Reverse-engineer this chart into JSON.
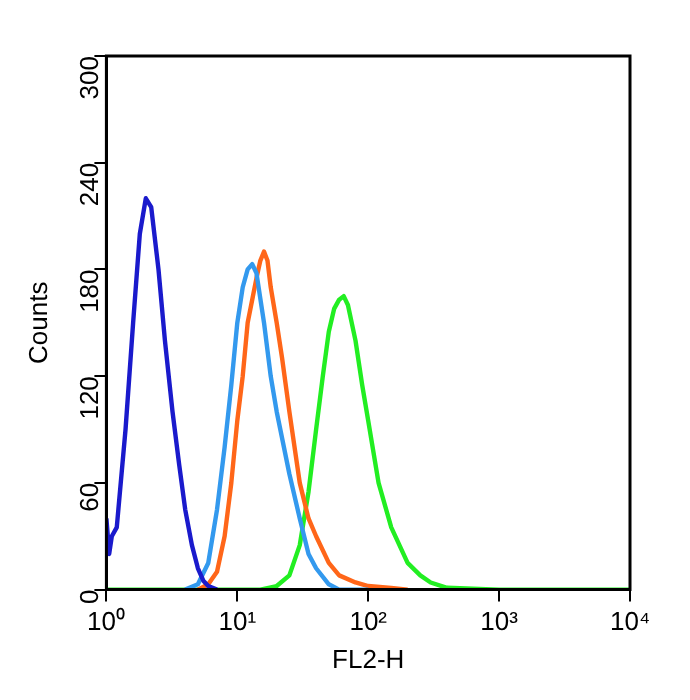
{
  "chart_data": {
    "type": "line",
    "xlabel": "FL2-H",
    "ylabel": "Counts",
    "log": "x",
    "xlim": [
      1,
      10000
    ],
    "ylim": [
      0,
      300
    ],
    "xticks": [
      {
        "value": 1,
        "label": "10⁰"
      },
      {
        "value": 10,
        "label": "10¹"
      },
      {
        "value": 100,
        "label": "10²"
      },
      {
        "value": 1000,
        "label": "10³"
      },
      {
        "value": 10000,
        "label": "10⁴"
      }
    ],
    "yticks": [
      0,
      60,
      120,
      180,
      240,
      300
    ],
    "grid": false,
    "legend": false,
    "marker": "none",
    "line_style": "solid",
    "series": [
      {
        "color": "#1a1acc",
        "x": [
          1,
          1.05,
          1.1,
          1.2,
          1.4,
          1.6,
          1.8,
          2.0,
          2.2,
          2.5,
          2.8,
          3.2,
          3.6,
          4.0,
          4.5,
          5,
          5.5,
          6,
          7
        ],
        "values": [
          40,
          20,
          30,
          35,
          90,
          150,
          200,
          220,
          215,
          180,
          140,
          100,
          70,
          45,
          25,
          12,
          5,
          2,
          0
        ]
      },
      {
        "color": "#3399ee",
        "x": [
          4,
          5,
          6,
          7,
          8,
          9,
          10,
          11,
          12,
          13,
          14,
          16,
          18,
          20,
          25,
          30,
          35,
          40,
          50,
          60,
          100
        ],
        "values": [
          0,
          3,
          15,
          45,
          80,
          115,
          150,
          170,
          180,
          183,
          178,
          150,
          120,
          100,
          65,
          40,
          20,
          12,
          3,
          0,
          0
        ]
      },
      {
        "color": "#ff6619",
        "x": [
          5,
          6,
          7,
          8,
          9,
          10,
          11,
          12,
          14,
          15,
          16,
          17,
          18,
          20,
          22,
          25,
          30,
          35,
          40,
          50,
          60,
          80,
          100,
          150,
          200
        ],
        "values": [
          0,
          3,
          10,
          30,
          60,
          95,
          120,
          150,
          175,
          185,
          190,
          185,
          170,
          150,
          130,
          100,
          60,
          40,
          30,
          15,
          8,
          4,
          2,
          1,
          0
        ]
      },
      {
        "color": "#22ee22",
        "x": [
          1,
          15,
          20,
          25,
          30,
          35,
          40,
          45,
          50,
          55,
          60,
          65,
          70,
          80,
          90,
          100,
          120,
          150,
          200,
          250,
          300,
          400,
          1000,
          10000
        ],
        "values": [
          0,
          0,
          2,
          8,
          25,
          55,
          90,
          120,
          145,
          158,
          163,
          165,
          160,
          140,
          115,
          95,
          60,
          35,
          15,
          8,
          4,
          1,
          0,
          0
        ]
      }
    ]
  }
}
